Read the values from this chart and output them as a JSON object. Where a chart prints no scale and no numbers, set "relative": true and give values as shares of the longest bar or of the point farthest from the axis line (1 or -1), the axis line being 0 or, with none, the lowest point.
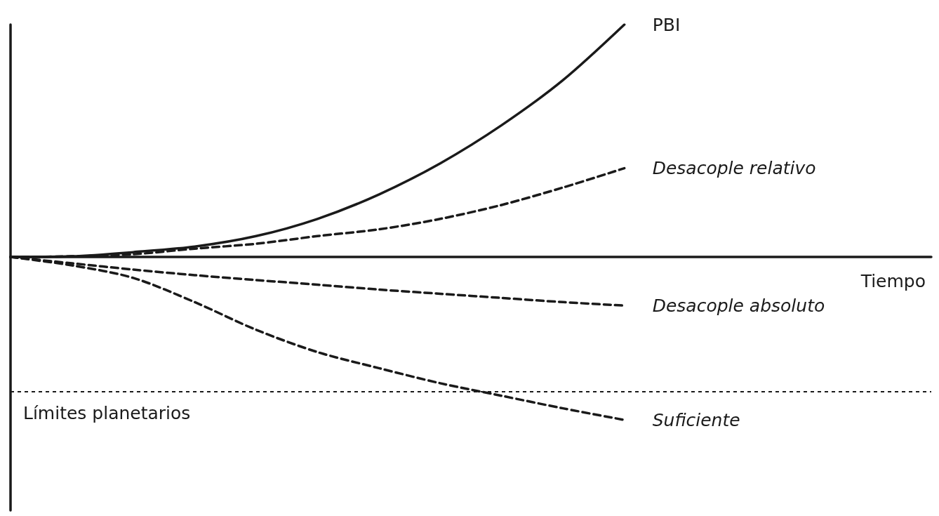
{
  "chart_data": {
    "type": "line",
    "relative": true,
    "xlabel": "Tiempo",
    "categories": [
      null,
      null,
      null,
      null,
      null,
      null,
      null,
      null,
      null,
      null,
      null,
      null,
      null,
      null,
      null,
      null
    ],
    "series": [
      {
        "name": "PBI",
        "color": "#1a1a1a",
        "line_style": "solid",
        "values": [
          0,
          0.003,
          0.021,
          0.045,
          0.09,
          0.164,
          0.269,
          0.403,
          0.567,
          0.761,
          1,
          null,
          null,
          null,
          null,
          null
        ]
      },
      {
        "name": "Desacople relativo",
        "color": "#1a1a1a",
        "line_style": "dashed",
        "values": [
          0,
          0.003,
          0.012,
          0.036,
          0.057,
          0.09,
          0.119,
          0.164,
          0.224,
          0.299,
          0.382,
          null,
          null,
          null,
          null,
          null
        ]
      },
      {
        "name": "Desacople absoluto",
        "color": "#1a1a1a",
        "line_style": "dashed",
        "values": [
          0,
          -0.027,
          -0.054,
          -0.078,
          -0.099,
          -0.119,
          -0.14,
          -0.158,
          -0.176,
          -0.194,
          -0.209,
          null,
          null,
          null,
          null,
          null
        ]
      },
      {
        "name": "Suficiente",
        "color": "#1a1a1a",
        "line_style": "dashed",
        "values": [
          0,
          -0.036,
          -0.09,
          -0.194,
          -0.313,
          -0.409,
          -0.478,
          -0.543,
          -0.597,
          -0.651,
          -0.701,
          null,
          null,
          null,
          null,
          null
        ]
      }
    ],
    "ref_lines": [
      {
        "axis": "y",
        "value": -0.576,
        "label": "Límites planetarios",
        "line_style": "dotted"
      }
    ],
    "marker": "none",
    "grid": false,
    "legend": false
  }
}
